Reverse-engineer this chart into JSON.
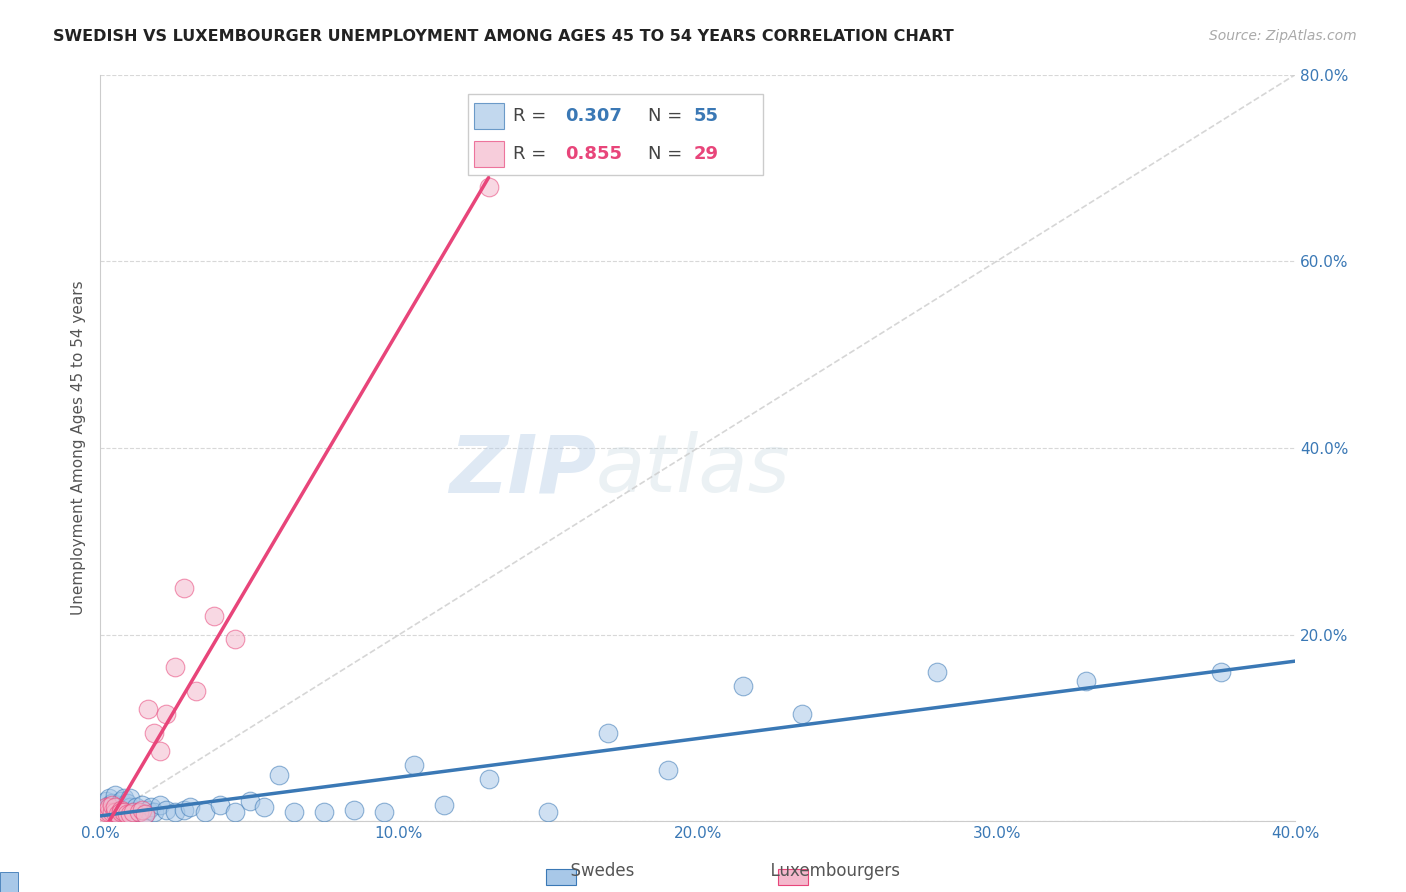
{
  "title": "SWEDISH VS LUXEMBOURGER UNEMPLOYMENT AMONG AGES 45 TO 54 YEARS CORRELATION CHART",
  "source": "Source: ZipAtlas.com",
  "ylabel": "Unemployment Among Ages 45 to 54 years",
  "xlim": [
    0.0,
    0.4
  ],
  "ylim": [
    0.0,
    0.8
  ],
  "xticks": [
    0.0,
    0.1,
    0.2,
    0.3,
    0.4
  ],
  "yticks": [
    0.0,
    0.2,
    0.4,
    0.6,
    0.8
  ],
  "swedes_color": "#a8c8e8",
  "luxembourgers_color": "#f4b8cc",
  "trendline_swedes_color": "#3a78b5",
  "trendline_luxembourgers_color": "#e8457a",
  "diagonal_color": "#cccccc",
  "legend_R_swedes": "0.307",
  "legend_N_swedes": "55",
  "legend_R_lux": "0.855",
  "legend_N_lux": "29",
  "watermark_zip": "ZIP",
  "watermark_atlas": "atlas",
  "swedes_x": [
    0.002,
    0.003,
    0.003,
    0.004,
    0.004,
    0.005,
    0.005,
    0.005,
    0.006,
    0.006,
    0.007,
    0.007,
    0.007,
    0.008,
    0.008,
    0.008,
    0.009,
    0.009,
    0.01,
    0.01,
    0.01,
    0.011,
    0.012,
    0.013,
    0.014,
    0.015,
    0.016,
    0.017,
    0.018,
    0.02,
    0.022,
    0.025,
    0.028,
    0.03,
    0.035,
    0.04,
    0.045,
    0.05,
    0.055,
    0.06,
    0.065,
    0.075,
    0.085,
    0.095,
    0.105,
    0.115,
    0.13,
    0.15,
    0.17,
    0.19,
    0.215,
    0.235,
    0.28,
    0.33,
    0.375
  ],
  "swedes_y": [
    0.022,
    0.018,
    0.025,
    0.012,
    0.02,
    0.008,
    0.015,
    0.028,
    0.01,
    0.018,
    0.006,
    0.012,
    0.022,
    0.008,
    0.015,
    0.025,
    0.01,
    0.02,
    0.005,
    0.015,
    0.025,
    0.01,
    0.015,
    0.01,
    0.018,
    0.008,
    0.012,
    0.015,
    0.01,
    0.018,
    0.012,
    0.01,
    0.012,
    0.015,
    0.01,
    0.018,
    0.01,
    0.022,
    0.015,
    0.05,
    0.01,
    0.01,
    0.012,
    0.01,
    0.06,
    0.018,
    0.045,
    0.01,
    0.095,
    0.055,
    0.145,
    0.115,
    0.16,
    0.15,
    0.16
  ],
  "luxembourgers_x": [
    0.001,
    0.002,
    0.002,
    0.003,
    0.003,
    0.004,
    0.004,
    0.005,
    0.005,
    0.006,
    0.007,
    0.007,
    0.008,
    0.009,
    0.01,
    0.011,
    0.013,
    0.014,
    0.015,
    0.016,
    0.018,
    0.02,
    0.022,
    0.025,
    0.028,
    0.032,
    0.038,
    0.045,
    0.13
  ],
  "luxembourgers_y": [
    0.008,
    0.01,
    0.015,
    0.01,
    0.015,
    0.01,
    0.018,
    0.01,
    0.015,
    0.008,
    0.012,
    0.01,
    0.01,
    0.008,
    0.008,
    0.01,
    0.01,
    0.012,
    0.008,
    0.12,
    0.095,
    0.075,
    0.115,
    0.165,
    0.25,
    0.14,
    0.22,
    0.195,
    0.68
  ],
  "lux_trendline_x_start": 0.0,
  "lux_trendline_x_end": 0.13,
  "swedes_trendline_x_end": 0.4
}
